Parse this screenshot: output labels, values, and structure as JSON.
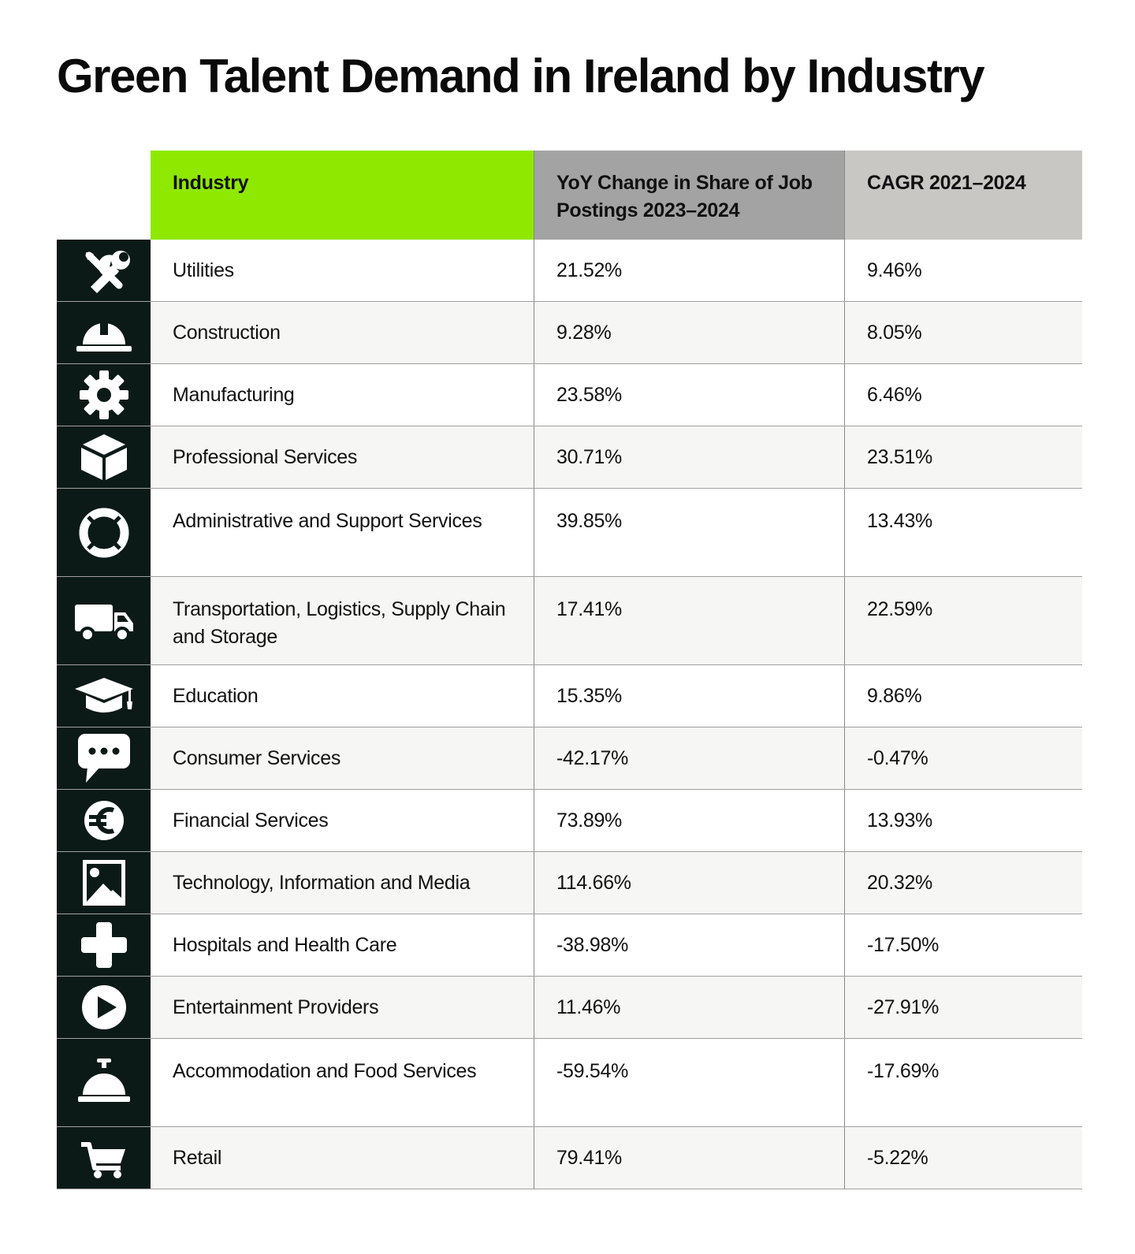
{
  "title": "Green Talent Demand in Ireland by Industry",
  "chart_data": {
    "type": "table",
    "title": "Green Talent Demand in Ireland by Industry",
    "columns": [
      "Industry",
      "YoY Change in Share of Job Postings 2023–2024",
      "CAGR 2021–2024"
    ],
    "rows": [
      {
        "icon": "tools-icon",
        "industry": "Utilities",
        "yoy": "21.52%",
        "cagr": "9.46%"
      },
      {
        "icon": "hard-hat-icon",
        "industry": "Construction",
        "yoy": "9.28%",
        "cagr": "8.05%"
      },
      {
        "icon": "gear-icon",
        "industry": "Manufacturing",
        "yoy": "23.58%",
        "cagr": "6.46%"
      },
      {
        "icon": "cube-icon",
        "industry": "Professional Services",
        "yoy": "30.71%",
        "cagr": "23.51%"
      },
      {
        "icon": "lifebuoy-icon",
        "industry": "Administrative and Support Services",
        "yoy": "39.85%",
        "cagr": "13.43%"
      },
      {
        "icon": "truck-icon",
        "industry": "Transportation, Logistics, Supply Chain and Storage",
        "yoy": "17.41%",
        "cagr": "22.59%"
      },
      {
        "icon": "graduation-cap-icon",
        "industry": "Education",
        "yoy": "15.35%",
        "cagr": "9.86%"
      },
      {
        "icon": "speech-bubble-icon",
        "industry": "Consumer Services",
        "yoy": "-42.17%",
        "cagr": "-0.47%"
      },
      {
        "icon": "euro-icon",
        "industry": "Financial Services",
        "yoy": "73.89%",
        "cagr": "13.93%"
      },
      {
        "icon": "image-icon",
        "industry": "Technology, Information and Media",
        "yoy": "114.66%",
        "cagr": "20.32%"
      },
      {
        "icon": "medical-cross-icon",
        "industry": "Hospitals and Health Care",
        "yoy": "-38.98%",
        "cagr": "-17.50%"
      },
      {
        "icon": "play-icon",
        "industry": "Entertainment Providers",
        "yoy": "11.46%",
        "cagr": "-27.91%"
      },
      {
        "icon": "service-bell-icon",
        "industry": "Accommodation and Food Services",
        "yoy": "-59.54%",
        "cagr": "-17.69%"
      },
      {
        "icon": "shopping-cart-icon",
        "industry": "Retail",
        "yoy": "79.41%",
        "cagr": "-5.22%"
      }
    ]
  },
  "colors": {
    "header_industry": "#8fe800",
    "header_yoy": "#a3a3a3",
    "header_cagr": "#c9c7c4",
    "icon_column": "#0b1a17"
  }
}
